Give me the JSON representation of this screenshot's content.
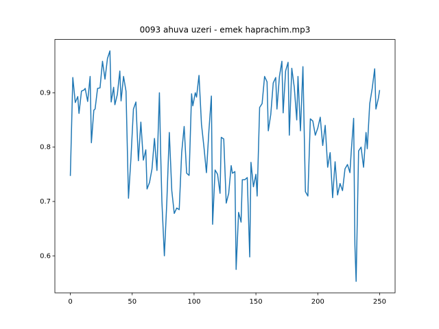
{
  "chart_data": {
    "type": "line",
    "title": "0093 ahuva uzeri - emek haprachim.mp3",
    "x": [
      0,
      2,
      4,
      6,
      7,
      9,
      11,
      12,
      14,
      16,
      17,
      19,
      20,
      22,
      24,
      26,
      28,
      30,
      32,
      33,
      35,
      36,
      38,
      40,
      41,
      43,
      45,
      47,
      49,
      51,
      53,
      55,
      57,
      59,
      61,
      62,
      64,
      66,
      68,
      70,
      72,
      73,
      74,
      76,
      78,
      80,
      82,
      84,
      86,
      88,
      90,
      92,
      94,
      96,
      98,
      99,
      101,
      102,
      104,
      106,
      108,
      110,
      112,
      114,
      115,
      117,
      119,
      121,
      122,
      124,
      126,
      128,
      130,
      131,
      133,
      134,
      136,
      138,
      139,
      141,
      143,
      145,
      146,
      148,
      150,
      151,
      153,
      155,
      157,
      159,
      160,
      162,
      164,
      166,
      167,
      169,
      171,
      172,
      174,
      176,
      177,
      179,
      181,
      183,
      184,
      186,
      188,
      190,
      192,
      194,
      196,
      198,
      200,
      202,
      204,
      206,
      208,
      210,
      212,
      214,
      216,
      218,
      220,
      222,
      224,
      226,
      227,
      229,
      230,
      231,
      233,
      235,
      237,
      239,
      240,
      242,
      244,
      246,
      247,
      249,
      250
    ],
    "series": [
      {
        "color": "#1f77b4",
        "values": [
          0.747,
          0.928,
          0.882,
          0.893,
          0.862,
          0.903,
          0.905,
          0.908,
          0.884,
          0.93,
          0.808,
          0.868,
          0.87,
          0.908,
          0.909,
          0.958,
          0.925,
          0.963,
          0.977,
          0.883,
          0.91,
          0.878,
          0.897,
          0.94,
          0.885,
          0.93,
          0.903,
          0.706,
          0.78,
          0.87,
          0.883,
          0.775,
          0.846,
          0.776,
          0.795,
          0.723,
          0.735,
          0.76,
          0.816,
          0.757,
          0.9,
          0.79,
          0.7,
          0.6,
          0.7,
          0.827,
          0.72,
          0.678,
          0.688,
          0.685,
          0.79,
          0.838,
          0.752,
          0.748,
          0.898,
          0.876,
          0.9,
          0.892,
          0.932,
          0.842,
          0.8,
          0.753,
          0.83,
          0.894,
          0.658,
          0.758,
          0.75,
          0.715,
          0.818,
          0.815,
          0.697,
          0.715,
          0.766,
          0.752,
          0.755,
          0.575,
          0.68,
          0.662,
          0.74,
          0.74,
          0.744,
          0.598,
          0.772,
          0.727,
          0.75,
          0.71,
          0.873,
          0.88,
          0.93,
          0.92,
          0.83,
          0.86,
          0.918,
          0.928,
          0.87,
          0.93,
          0.958,
          0.863,
          0.94,
          0.956,
          0.822,
          0.945,
          0.91,
          0.85,
          0.93,
          0.83,
          0.948,
          0.718,
          0.71,
          0.852,
          0.848,
          0.822,
          0.835,
          0.855,
          0.803,
          0.84,
          0.763,
          0.79,
          0.707,
          0.773,
          0.712,
          0.733,
          0.72,
          0.76,
          0.768,
          0.753,
          0.79,
          0.853,
          0.62,
          0.553,
          0.793,
          0.8,
          0.763,
          0.827,
          0.797,
          0.88,
          0.908,
          0.944,
          0.87,
          0.89,
          0.905
        ]
      }
    ],
    "xlim": [
      -12.5,
      262.5
    ],
    "xticks": [
      0,
      50,
      100,
      150,
      200,
      250
    ],
    "ylim": [
      0.532,
      0.998
    ],
    "yticks": [
      0.6,
      0.7,
      0.8,
      0.9
    ],
    "grid": false
  }
}
